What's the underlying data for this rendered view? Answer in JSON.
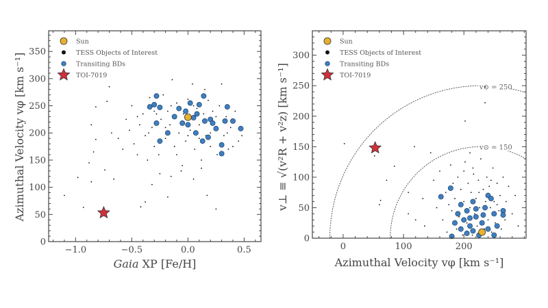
{
  "colors": {
    "sun": "#e8b030",
    "toi": "#111111",
    "bd": "#3f7fc0",
    "star": "#d0303a",
    "axis": "#444444"
  },
  "chart_data": [
    {
      "type": "scatter",
      "xlabel_italic": "Gaia",
      "xlabel": " XP [Fe/H]",
      "ylabel": "Azimuthal Velocity vφ [km s⁻¹]",
      "xlim": [
        -1.24,
        0.65
      ],
      "ylim": [
        0,
        388
      ],
      "xticks": [
        -1.0,
        -0.5,
        0.0,
        0.5
      ],
      "xtick_labels": [
        "−1.0",
        "−0.5",
        "0.0",
        "0.5"
      ],
      "yticks": [
        0,
        50,
        100,
        150,
        200,
        250,
        300,
        350
      ],
      "ytick_labels": [
        "0",
        "50",
        "100",
        "150",
        "200",
        "250",
        "300",
        "350"
      ],
      "legend": {
        "placement": "top-left",
        "entries": [
          "Sun",
          "TESS Objects of Interest",
          "Transiting BDs",
          "TOI-7019"
        ]
      },
      "series": {
        "sun": [
          [
            0.0,
            229
          ]
        ],
        "toi_7019": [
          [
            -0.75,
            53
          ]
        ],
        "transiting_bds": [
          [
            -0.28,
            268
          ],
          [
            -0.3,
            252
          ],
          [
            -0.34,
            248
          ],
          [
            -0.25,
            247
          ],
          [
            -0.28,
            218
          ],
          [
            -0.25,
            185
          ],
          [
            -0.18,
            200
          ],
          [
            -0.12,
            230
          ],
          [
            -0.08,
            245
          ],
          [
            -0.05,
            218
          ],
          [
            0.0,
            215
          ],
          [
            0.05,
            228
          ],
          [
            0.1,
            252
          ],
          [
            0.14,
            268
          ],
          [
            0.15,
            222
          ],
          [
            0.18,
            192
          ],
          [
            0.2,
            225
          ],
          [
            0.25,
            208
          ],
          [
            0.3,
            178
          ],
          [
            0.3,
            162
          ],
          [
            0.33,
            222
          ],
          [
            0.35,
            248
          ],
          [
            0.4,
            222
          ],
          [
            0.47,
            208
          ],
          [
            0.02,
            255
          ],
          [
            0.07,
            200
          ],
          [
            0.13,
            185
          ],
          [
            -0.02,
            240
          ],
          [
            0.22,
            218
          ],
          [
            0.08,
            235
          ]
        ],
        "tess_objects_of_interest": [
          [
            -1.1,
            85
          ],
          [
            -0.93,
            63
          ],
          [
            -0.98,
            118
          ],
          [
            -0.86,
            110
          ],
          [
            -0.88,
            145
          ],
          [
            -0.84,
            165
          ],
          [
            -0.82,
            188
          ],
          [
            -0.86,
            215
          ],
          [
            -0.82,
            248
          ],
          [
            -0.7,
            285
          ],
          [
            -0.72,
            258
          ],
          [
            -0.74,
            132
          ],
          [
            -0.66,
            115
          ],
          [
            -0.42,
            64
          ],
          [
            -0.38,
            73
          ],
          [
            -0.18,
            82
          ],
          [
            0.17,
            85
          ],
          [
            0.25,
            60
          ],
          [
            -0.32,
            105
          ],
          [
            -0.68,
            200
          ],
          [
            -0.62,
            190
          ],
          [
            -0.58,
            170
          ],
          [
            -0.55,
            225
          ],
          [
            -0.52,
            205
          ],
          [
            -0.5,
            250
          ],
          [
            -0.48,
            180
          ],
          [
            -0.45,
            160
          ],
          [
            -0.43,
            215
          ],
          [
            -0.4,
            235
          ],
          [
            -0.38,
            195
          ],
          [
            -0.36,
            150
          ],
          [
            -0.34,
            265
          ],
          [
            -0.32,
            210
          ],
          [
            -0.3,
            175
          ],
          [
            -0.28,
            235
          ],
          [
            -0.26,
            160
          ],
          [
            -0.24,
            225
          ],
          [
            -0.22,
            270
          ],
          [
            -0.2,
            190
          ],
          [
            -0.18,
            240
          ],
          [
            -0.16,
            215
          ],
          [
            -0.14,
            298
          ],
          [
            -0.12,
            175
          ],
          [
            -0.1,
            255
          ],
          [
            -0.08,
            200
          ],
          [
            -0.06,
            130
          ],
          [
            -0.04,
            235
          ],
          [
            -0.02,
            185
          ],
          [
            0.0,
            262
          ],
          [
            0.02,
            205
          ],
          [
            0.04,
            290
          ],
          [
            0.06,
            170
          ],
          [
            0.08,
            245
          ],
          [
            0.1,
            215
          ],
          [
            0.12,
            150
          ],
          [
            0.14,
            235
          ],
          [
            0.16,
            195
          ],
          [
            0.18,
            260
          ],
          [
            0.2,
            175
          ],
          [
            0.22,
            240
          ],
          [
            0.24,
            205
          ],
          [
            0.26,
            160
          ],
          [
            0.28,
            250
          ],
          [
            0.3,
            290
          ],
          [
            0.32,
            195
          ],
          [
            0.34,
            230
          ],
          [
            0.36,
            170
          ],
          [
            0.38,
            210
          ],
          [
            0.42,
            240
          ],
          [
            0.45,
            185
          ],
          [
            0.48,
            195
          ],
          [
            -0.15,
            120
          ],
          [
            -0.05,
            140
          ],
          [
            0.05,
            115
          ],
          [
            0.12,
            135
          ],
          [
            -0.25,
            125
          ],
          [
            -0.45,
            230
          ],
          [
            -0.35,
            200
          ],
          [
            0.15,
            280
          ],
          [
            -0.1,
            160
          ],
          [
            0.0,
            195
          ],
          [
            0.1,
            190
          ],
          [
            0.2,
            200
          ],
          [
            -0.2,
            210
          ],
          [
            0.25,
            230
          ],
          [
            -0.3,
            240
          ],
          [
            0.05,
            250
          ],
          [
            -0.15,
            250
          ],
          [
            0.35,
            200
          ],
          [
            0.4,
            175
          ]
        ]
      }
    },
    {
      "type": "scatter",
      "xlabel": "Azimuthal Velocity vφ [km s⁻¹]",
      "ylabel": "v⊥ ≡ √(v²R + v²z) [km s⁻¹]",
      "xlim": [
        -51,
        303
      ],
      "ylim": [
        0,
        340
      ],
      "xticks": [
        0,
        100,
        200
      ],
      "xtick_labels": [
        "0",
        "100",
        "200"
      ],
      "yticks": [
        0,
        50,
        100,
        150,
        200,
        250,
        300
      ],
      "ytick_labels": [
        "0",
        "50",
        "100",
        "150",
        "200",
        "250",
        "300"
      ],
      "legend": {
        "placement": "top-left",
        "entries": [
          "Sun",
          "TESS Objects of Interest",
          "Transiting BDs",
          "TOI-7019"
        ]
      },
      "annotations": [
        {
          "text": "v⊙ = 250",
          "radius": 250
        },
        {
          "text": "v⊙ = 150",
          "radius": 150
        }
      ],
      "circle_center": [
        228,
        0
      ],
      "series": {
        "sun": [
          [
            230,
            10
          ]
        ],
        "toi_7019": [
          [
            53,
            148
          ]
        ],
        "transiting_bds": [
          [
            162,
            68
          ],
          [
            178,
            82
          ],
          [
            180,
            3
          ],
          [
            185,
            25
          ],
          [
            190,
            40
          ],
          [
            195,
            15
          ],
          [
            200,
            30
          ],
          [
            205,
            45
          ],
          [
            210,
            20
          ],
          [
            215,
            60
          ],
          [
            220,
            35
          ],
          [
            225,
            5
          ],
          [
            230,
            25
          ],
          [
            235,
            50
          ],
          [
            240,
            70
          ],
          [
            245,
            65
          ],
          [
            250,
            40
          ],
          [
            255,
            20
          ],
          [
            265,
            45
          ],
          [
            265,
            38
          ],
          [
            205,
            8
          ],
          [
            215,
            12
          ],
          [
            195,
            55
          ],
          [
            240,
            15
          ],
          [
            250,
            5
          ],
          [
            220,
            48
          ],
          [
            232,
            38
          ],
          [
            210,
            33
          ]
        ],
        "tess_objects_of_interest": [
          [
            2,
            155
          ],
          [
            52,
            135
          ],
          [
            60,
            55
          ],
          [
            62,
            62
          ],
          [
            72,
            95
          ],
          [
            85,
            118
          ],
          [
            108,
            75
          ],
          [
            118,
            150
          ],
          [
            132,
            65
          ],
          [
            145,
            140
          ],
          [
            202,
            192
          ],
          [
            235,
            248
          ],
          [
            235,
            222
          ],
          [
            210,
            140
          ],
          [
            108,
            40
          ],
          [
            120,
            30
          ],
          [
            135,
            20
          ],
          [
            150,
            95
          ],
          [
            155,
            50
          ],
          [
            160,
            110
          ],
          [
            165,
            30
          ],
          [
            170,
            75
          ],
          [
            172,
            10
          ],
          [
            175,
            55
          ],
          [
            178,
            120
          ],
          [
            182,
            90
          ],
          [
            185,
            65
          ],
          [
            188,
            15
          ],
          [
            190,
            100
          ],
          [
            192,
            35
          ],
          [
            195,
            80
          ],
          [
            198,
            5
          ],
          [
            200,
            60
          ],
          [
            202,
            125
          ],
          [
            205,
            25
          ],
          [
            207,
            90
          ],
          [
            210,
            50
          ],
          [
            212,
            75
          ],
          [
            214,
            5
          ],
          [
            216,
            105
          ],
          [
            218,
            40
          ],
          [
            220,
            65
          ],
          [
            222,
            20
          ],
          [
            224,
            95
          ],
          [
            226,
            50
          ],
          [
            228,
            130
          ],
          [
            230,
            40
          ],
          [
            232,
            80
          ],
          [
            234,
            15
          ],
          [
            236,
            60
          ],
          [
            238,
            100
          ],
          [
            240,
            30
          ],
          [
            242,
            85
          ],
          [
            244,
            50
          ],
          [
            246,
            10
          ],
          [
            248,
            115
          ],
          [
            250,
            60
          ],
          [
            252,
            25
          ],
          [
            255,
            90
          ],
          [
            258,
            45
          ],
          [
            260,
            70
          ],
          [
            262,
            15
          ],
          [
            265,
            100
          ],
          [
            268,
            30
          ],
          [
            270,
            60
          ],
          [
            274,
            85
          ],
          [
            280,
            40
          ],
          [
            285,
            70
          ],
          [
            290,
            20
          ],
          [
            200,
            110
          ],
          [
            215,
            115
          ],
          [
            245,
            95
          ],
          [
            180,
            45
          ],
          [
            225,
            75
          ],
          [
            255,
            55
          ]
        ]
      }
    }
  ]
}
